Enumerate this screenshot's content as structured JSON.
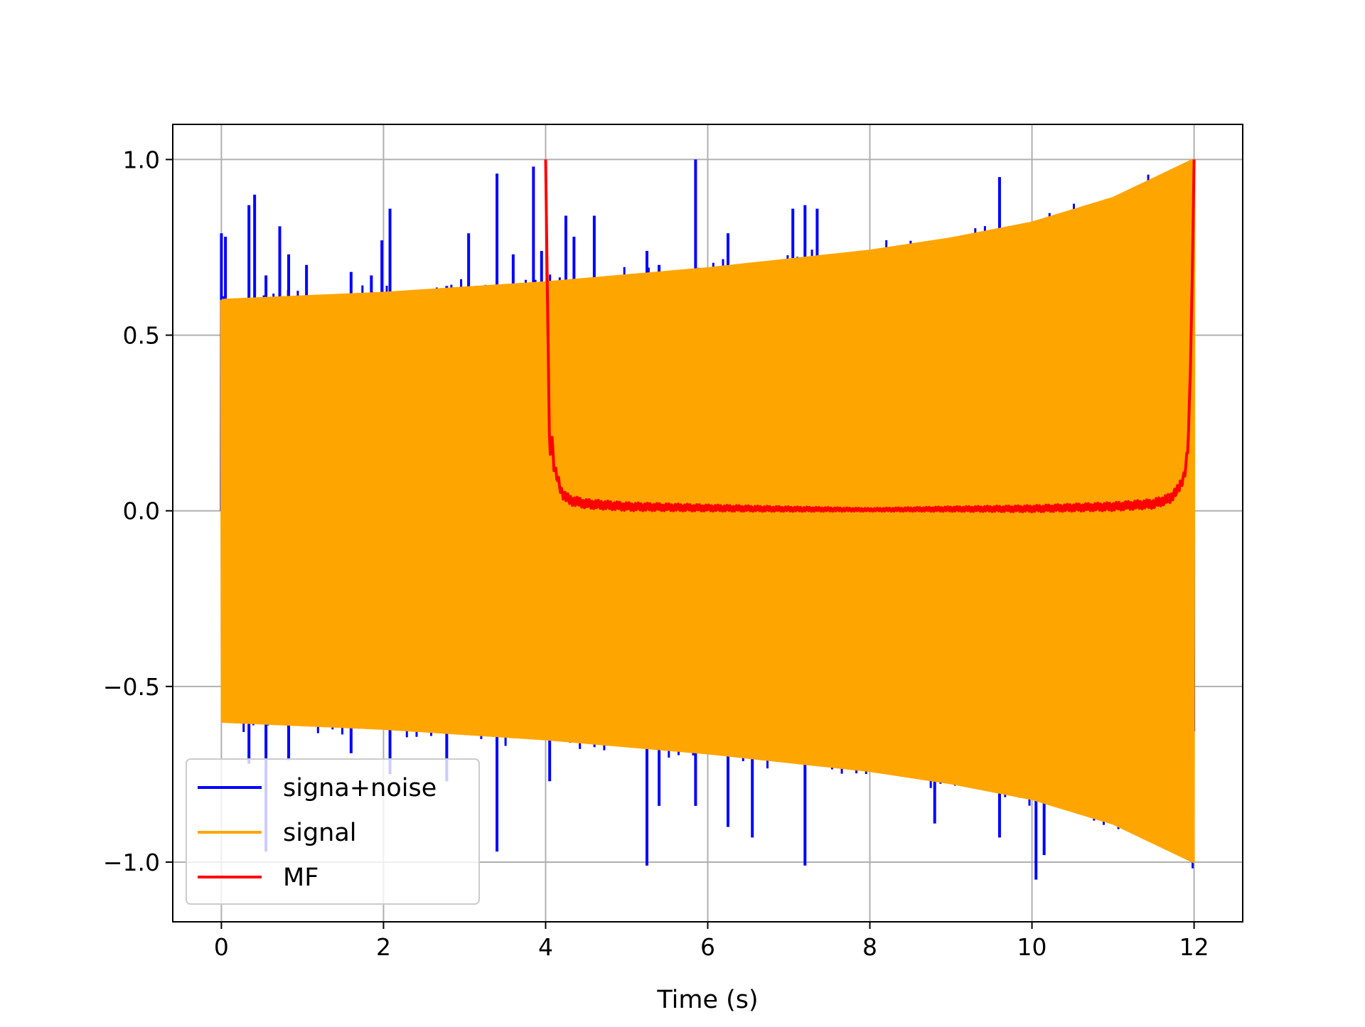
{
  "chart_data": {
    "type": "line",
    "title": "",
    "xlabel": "Time (s)",
    "ylabel": "",
    "xlim": [
      -0.6,
      12.6
    ],
    "ylim": [
      -1.17,
      1.1
    ],
    "xticks": [
      0,
      2,
      4,
      6,
      8,
      10,
      12
    ],
    "yticks": [
      -1.0,
      -0.5,
      0.0,
      0.5,
      1.0
    ],
    "xtick_labels": [
      "0",
      "2",
      "4",
      "6",
      "8",
      "10",
      "12"
    ],
    "ytick_labels": [
      "−1.0",
      "−0.5",
      "0.0",
      "0.5",
      "1.0"
    ],
    "grid": true,
    "legend_position": "lower-left",
    "series": [
      {
        "name": "signa+noise",
        "color": "#0000ff",
        "style": "noisy oscillation around the signal with sparse spikes",
        "x_range": [
          0,
          12
        ],
        "spikes": [
          [
            0.0,
            0.79
          ],
          [
            0.05,
            0.78
          ],
          [
            0.34,
            0.87
          ],
          [
            0.41,
            0.9
          ],
          [
            0.55,
            0.67
          ],
          [
            0.72,
            0.81
          ],
          [
            0.83,
            0.73
          ],
          [
            1.05,
            0.7
          ],
          [
            1.6,
            0.68
          ],
          [
            1.85,
            0.67
          ],
          [
            1.98,
            0.77
          ],
          [
            2.08,
            0.86
          ],
          [
            2.78,
            0.64
          ],
          [
            3.05,
            0.79
          ],
          [
            3.4,
            0.96
          ],
          [
            3.6,
            0.73
          ],
          [
            3.85,
            0.98
          ],
          [
            3.95,
            0.74
          ],
          [
            4.25,
            0.84
          ],
          [
            4.35,
            0.78
          ],
          [
            4.6,
            0.84
          ],
          [
            5.25,
            0.74
          ],
          [
            5.4,
            0.7
          ],
          [
            5.85,
            1.0
          ],
          [
            6.25,
            0.79
          ],
          [
            7.05,
            0.86
          ],
          [
            7.2,
            0.87
          ],
          [
            7.35,
            0.86
          ],
          [
            8.8,
            0.73
          ],
          [
            9.6,
            0.95
          ],
          [
            9.85,
            0.68
          ],
          [
            0.34,
            -0.72
          ],
          [
            0.55,
            -0.97
          ],
          [
            0.83,
            -0.71
          ],
          [
            1.6,
            -0.69
          ],
          [
            2.08,
            -0.75
          ],
          [
            2.78,
            -0.77
          ],
          [
            3.4,
            -0.97
          ],
          [
            4.05,
            -0.77
          ],
          [
            5.25,
            -1.01
          ],
          [
            5.4,
            -0.84
          ],
          [
            5.85,
            -0.84
          ],
          [
            6.25,
            -0.9
          ],
          [
            6.55,
            -0.93
          ],
          [
            7.2,
            -1.01
          ],
          [
            8.8,
            -0.89
          ],
          [
            9.6,
            -0.93
          ],
          [
            10.05,
            -1.05
          ],
          [
            10.15,
            -0.98
          ],
          [
            11.2,
            -0.87
          ]
        ]
      },
      {
        "name": "signal",
        "color": "#ffa500",
        "style": "dense chirp oscillation filling the envelope",
        "x_range": [
          0,
          12
        ],
        "envelope": {
          "x": [
            0,
            1,
            2,
            3,
            4,
            5,
            6,
            7,
            8,
            9,
            10,
            11,
            12
          ],
          "y": [
            0.6,
            0.61,
            0.62,
            0.635,
            0.65,
            0.67,
            0.69,
            0.715,
            0.74,
            0.775,
            0.82,
            0.89,
            1.0
          ]
        }
      },
      {
        "name": "MF",
        "color": "#ff0000",
        "style": "matched filter output",
        "x": [
          4.0,
          4.02,
          4.05,
          4.08,
          4.1,
          4.15,
          4.2,
          4.3,
          4.5,
          5,
          6,
          7,
          8,
          9,
          10,
          11,
          11.5,
          11.7,
          11.8,
          11.88,
          11.92,
          11.95,
          11.98,
          12.0
        ],
        "y": [
          1.0,
          0.65,
          0.15,
          0.2,
          0.13,
          0.09,
          0.05,
          0.03,
          0.02,
          0.012,
          0.008,
          0.005,
          0.003,
          0.005,
          0.006,
          0.012,
          0.02,
          0.035,
          0.06,
          0.1,
          0.17,
          0.35,
          0.7,
          1.0
        ]
      }
    ]
  }
}
